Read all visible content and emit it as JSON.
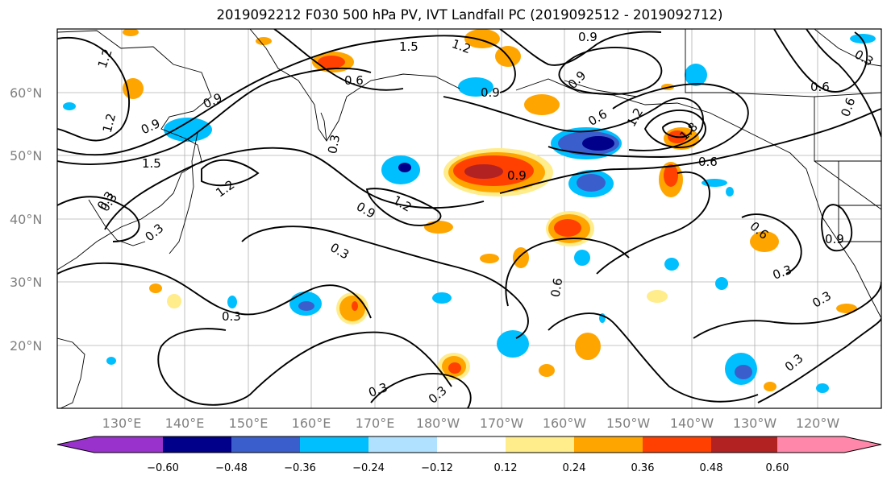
{
  "title": "2019092212 F030 500 hPa PV, IVT Landfall PC (2019092512 - 2019092712)",
  "map": {
    "lat_labels": [
      "60°N",
      "50°N",
      "40°N",
      "30°N",
      "20°N"
    ],
    "lon_labels": [
      "130°E",
      "140°E",
      "150°E",
      "160°E",
      "170°E",
      "180°W",
      "170°W",
      "160°W",
      "150°W",
      "140°W",
      "130°W",
      "120°W"
    ],
    "contour_labels": [
      "1.2",
      "1.5",
      "1.2",
      "0.9",
      "0.9",
      "0.6",
      "0.9",
      "0.3",
      "0.6",
      "1.2",
      "1.8",
      "0.6",
      "0.6",
      "0.9",
      "1.2",
      "1.5",
      "1.2",
      "0.9",
      "1.2",
      "0.9",
      "0.9",
      "0.3",
      "0.3",
      "0.3",
      "0.6",
      "0.3",
      "0.3",
      "0.3",
      "0.3",
      "0.3",
      "0.6",
      "0.9",
      "0.3",
      "0.6",
      "0.3",
      "0.3"
    ]
  },
  "colorbar": {
    "ticks": [
      "−0.60",
      "−0.48",
      "−0.36",
      "−0.24",
      "−0.12",
      "0.12",
      "0.24",
      "0.36",
      "0.48",
      "0.60"
    ],
    "colors": [
      "#9932cc",
      "#00008b",
      "#3a5fcd",
      "#00bfff",
      "#b0e2ff",
      "#ffffff",
      "#ffec8b",
      "#ffa500",
      "#ff4000",
      "#b22222",
      "#ff88aa"
    ]
  }
}
